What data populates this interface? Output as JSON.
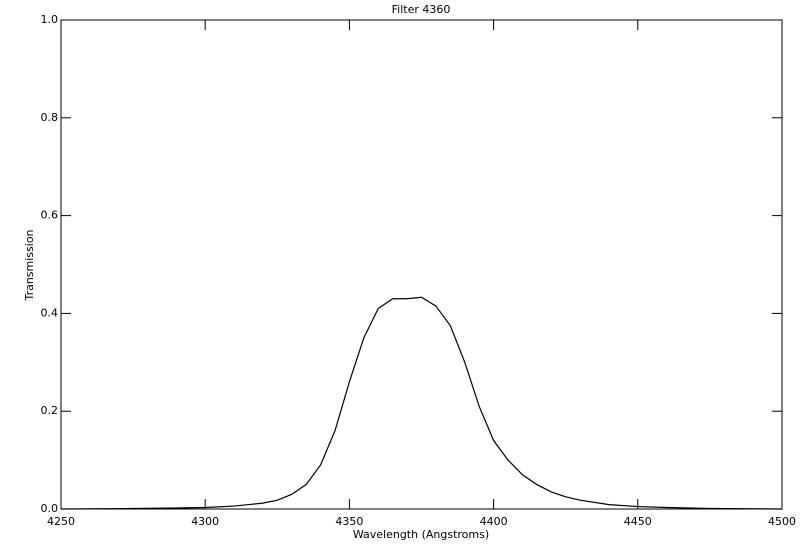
{
  "chart_data": {
    "type": "line",
    "title": "Filter 4360",
    "x_label": "Wavelength (Angstroms)",
    "y_label": "Transmission",
    "x": [
      4250,
      4275,
      4290,
      4300,
      4310,
      4320,
      4325,
      4330,
      4335,
      4340,
      4345,
      4350,
      4355,
      4360,
      4365,
      4370,
      4375,
      4380,
      4385,
      4390,
      4395,
      4400,
      4405,
      4410,
      4415,
      4420,
      4425,
      4430,
      4440,
      4450,
      4460,
      4475,
      4500
    ],
    "series": [
      {
        "name": "Filter 4360",
        "color": "#000000",
        "values": [
          0,
          0.001,
          0.002,
          0.003,
          0.006,
          0.012,
          0.018,
          0.03,
          0.05,
          0.09,
          0.16,
          0.26,
          0.35,
          0.41,
          0.43,
          0.43,
          0.433,
          0.415,
          0.375,
          0.3,
          0.21,
          0.14,
          0.1,
          0.07,
          0.05,
          0.035,
          0.025,
          0.018,
          0.009,
          0.005,
          0.003,
          0.001,
          0
        ]
      }
    ],
    "xlim": [
      4250,
      4500
    ],
    "xticks": [
      4250,
      4300,
      4350,
      4400,
      4450,
      4500
    ],
    "ylim": [
      0,
      1
    ],
    "yticks": [
      {
        "value": 0,
        "label": "0.0"
      },
      0.2,
      0.4,
      0.6,
      0.8,
      {
        "value": 1,
        "label": "1.0"
      }
    ],
    "grid": false
  }
}
